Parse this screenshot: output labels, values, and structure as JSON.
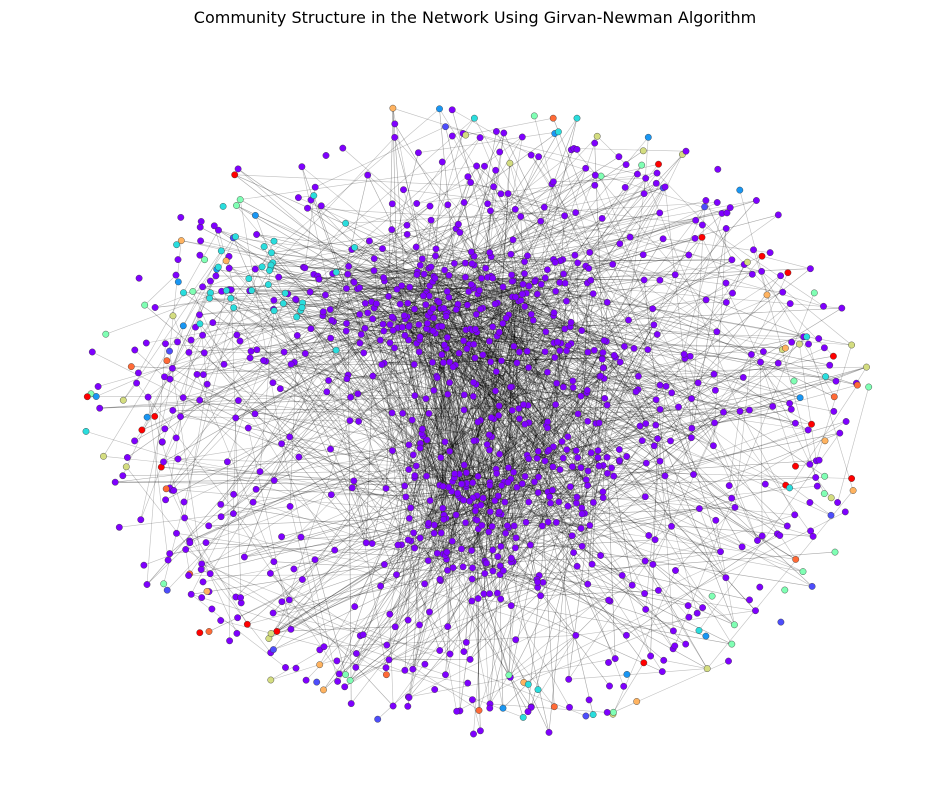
{
  "title": "Community Structure in the Network Using Girvan-Newman Algorithm",
  "chart_data": {
    "type": "network-graph",
    "title": "Community Structure in the Network Using Girvan-Newman Algorithm",
    "axes_visible": false,
    "edge_color": "#000000",
    "node_edge_color": "#333333",
    "communities": [
      {
        "color": "#7f00ff",
        "share": 0.82
      },
      {
        "color": "#2adddd",
        "share": 0.05
      },
      {
        "color": "#1996f3",
        "share": 0.035
      },
      {
        "color": "#4d4dfb",
        "share": 0.02
      },
      {
        "color": "#80ffb4",
        "share": 0.025
      },
      {
        "color": "#d4dd80",
        "share": 0.02
      },
      {
        "color": "#ffb360",
        "share": 0.015
      },
      {
        "color": "#ff6a36",
        "share": 0.01
      },
      {
        "color": "#ff0000",
        "share": 0.005
      }
    ],
    "dense_cluster_colors": [
      "#7f00ff"
    ],
    "periphery_colors": [
      "#2adddd",
      "#1996f3",
      "#4d4dfb",
      "#80ffb4",
      "#d4dd80",
      "#ffb360",
      "#ff6a36",
      "#ff0000"
    ]
  }
}
